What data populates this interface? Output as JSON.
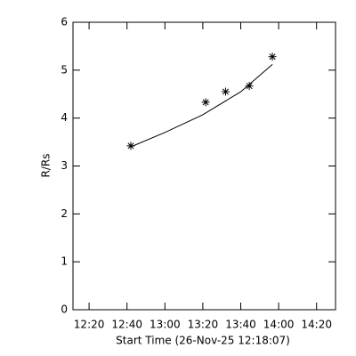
{
  "chart_data": {
    "type": "scatter",
    "xlabel": "Start Time (26-Nov-25 12:18:07)",
    "ylabel": "R/Rs",
    "xlim": [
      731.5,
      870
    ],
    "xticks": [
      {
        "value": 740,
        "label": "12:20"
      },
      {
        "value": 760,
        "label": "12:40"
      },
      {
        "value": 780,
        "label": "13:00"
      },
      {
        "value": 800,
        "label": "13:20"
      },
      {
        "value": 820,
        "label": "13:40"
      },
      {
        "value": 840,
        "label": "14:00"
      },
      {
        "value": 860,
        "label": "14:20"
      }
    ],
    "ylim": [
      0,
      6
    ],
    "yticks": [
      0,
      1,
      2,
      3,
      4,
      5,
      6
    ],
    "series": [
      {
        "style": "marker",
        "color": "#000000",
        "x": [
          762,
          801.5,
          812,
          824.5,
          836.7
        ],
        "values": [
          3.42,
          4.33,
          4.55,
          4.67,
          5.28
        ]
      },
      {
        "style": "line",
        "color": "#000000",
        "x": [
          762,
          780,
          800,
          820,
          836.7
        ],
        "values": [
          3.4,
          3.7,
          4.07,
          4.55,
          5.12
        ]
      }
    ]
  }
}
